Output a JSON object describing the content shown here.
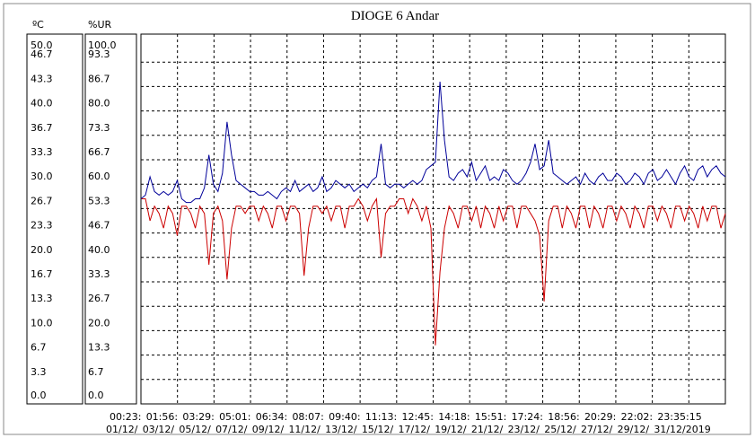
{
  "chart_data": {
    "type": "line",
    "title": "DIOGE 6 Andar",
    "y_label": "ºC",
    "y2_label": "%UR",
    "ylim": [
      0,
      50
    ],
    "yticks": [
      {
        "value": 0,
        "label": "0.0"
      },
      {
        "value": 3.333,
        "label": "3.3"
      },
      {
        "value": 6.667,
        "label": "6.7"
      },
      {
        "value": 10,
        "label": "10.0"
      },
      {
        "value": 13.333,
        "label": "13.3"
      },
      {
        "value": 16.667,
        "label": "16.7"
      },
      {
        "value": 20,
        "label": "20.0"
      },
      {
        "value": 23.333,
        "label": "23.3"
      },
      {
        "value": 26.667,
        "label": "26.7"
      },
      {
        "value": 30,
        "label": "30.0"
      },
      {
        "value": 33.333,
        "label": "33.3"
      },
      {
        "value": 36.667,
        "label": "36.7"
      },
      {
        "value": 40,
        "label": "40.0"
      },
      {
        "value": 43.333,
        "label": "43.3"
      },
      {
        "value": 46.667,
        "label": "46.7"
      },
      {
        "value": 50,
        "label": "50.0"
      }
    ],
    "y2lim": [
      0,
      100
    ],
    "y2ticks": [
      {
        "value": 0,
        "label": "0.0"
      },
      {
        "value": 6.667,
        "label": "6.7"
      },
      {
        "value": 13.333,
        "label": "13.3"
      },
      {
        "value": 20,
        "label": "20.0"
      },
      {
        "value": 26.667,
        "label": "26.7"
      },
      {
        "value": 33.333,
        "label": "33.3"
      },
      {
        "value": 40,
        "label": "40.0"
      },
      {
        "value": 46.667,
        "label": "46.7"
      },
      {
        "value": 53.333,
        "label": "53.3"
      },
      {
        "value": 60,
        "label": "60.0"
      },
      {
        "value": 66.667,
        "label": "66.7"
      },
      {
        "value": 73.333,
        "label": "73.3"
      },
      {
        "value": 80,
        "label": "80.0"
      },
      {
        "value": 86.667,
        "label": "86.7"
      },
      {
        "value": 93.333,
        "label": "93.3"
      },
      {
        "value": 100,
        "label": "100.0"
      }
    ],
    "x_time_labels": [
      "00:23:",
      "01:56:",
      "03:29:",
      "05:01:",
      "06:34:",
      "08:07:",
      "09:40:",
      "11:13:",
      "12:45:",
      "14:18:",
      "15:51:",
      "17:24:",
      "18:56:",
      "20:29:",
      "22:02:",
      "23:35:15"
    ],
    "x_date_labels": [
      "01/12/",
      "03/12/",
      "05/12/",
      "07/12/",
      "09/12/",
      "11/12/",
      "13/12/",
      "15/12/",
      "17/12/",
      "19/12/",
      "21/12/",
      "23/12/",
      "25/12/",
      "27/12/",
      "29/12/",
      "31/12/2019"
    ],
    "grid": true,
    "series": [
      {
        "color": "#cc0000",
        "values": [
          28,
          28,
          25,
          27,
          26,
          24,
          27,
          26,
          23,
          27,
          27,
          26,
          24,
          27,
          26,
          19,
          26,
          27,
          25,
          17,
          24,
          27,
          27,
          26,
          27,
          27,
          25,
          27,
          26,
          24,
          27,
          27,
          25,
          27,
          27,
          26,
          17.5,
          24,
          27,
          27,
          26,
          27,
          25,
          27,
          27,
          24,
          27,
          27,
          28,
          27,
          25,
          27,
          28,
          20,
          26,
          27,
          27,
          28,
          28,
          26,
          28,
          27,
          25,
          27,
          24,
          8,
          18,
          24,
          27,
          26,
          24,
          27,
          27,
          25,
          27,
          24,
          27,
          26,
          24,
          27,
          25,
          27,
          27,
          24,
          27,
          27,
          26,
          25,
          23,
          14,
          25,
          27,
          27,
          24,
          27,
          26,
          24,
          27,
          27,
          24,
          27,
          26,
          24,
          27,
          27,
          25,
          27,
          26,
          24,
          27,
          26,
          24,
          27,
          27,
          25,
          27,
          26,
          24,
          27,
          27,
          25,
          27,
          26,
          24,
          27,
          25,
          27,
          27,
          24,
          26
        ]
      },
      {
        "color": "#000099",
        "axis": "y2",
        "values": [
          56,
          57,
          62,
          58,
          57,
          58,
          57,
          58,
          61,
          56,
          55,
          55,
          56,
          56,
          59,
          68,
          60,
          58,
          63,
          77,
          68,
          61,
          60,
          59,
          58,
          58,
          57,
          57,
          58,
          57,
          56,
          58,
          59,
          58,
          61,
          58,
          59,
          60,
          58,
          59,
          62,
          58,
          59,
          61,
          60,
          59,
          60,
          58,
          59,
          60,
          59,
          61,
          62,
          71,
          60,
          59,
          60,
          60,
          59,
          60,
          61,
          60,
          61,
          64,
          65,
          66,
          88,
          72,
          62,
          61,
          63,
          64,
          62,
          66,
          61,
          63,
          65,
          61,
          62,
          61,
          64,
          63,
          61,
          60,
          61,
          63,
          66,
          71,
          64,
          65,
          72,
          63,
          62,
          61,
          60,
          61,
          62,
          60,
          63,
          61,
          60,
          62,
          63,
          61,
          61,
          63,
          62,
          60,
          61,
          63,
          62,
          60,
          63,
          64,
          61,
          62,
          64,
          62,
          60,
          63,
          65,
          62,
          61,
          64,
          65,
          62,
          64,
          65,
          63,
          62
        ]
      }
    ]
  }
}
